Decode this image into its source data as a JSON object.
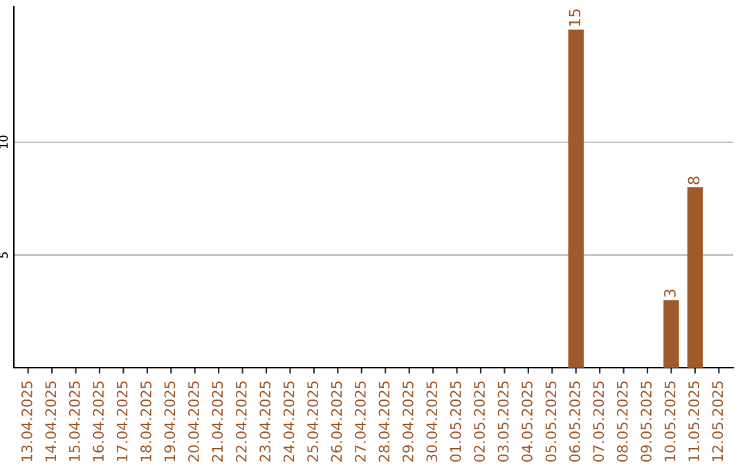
{
  "chart_data": {
    "type": "bar",
    "categories": [
      "13.04.2025",
      "14.04.2025",
      "15.04.2025",
      "16.04.2025",
      "17.04.2025",
      "18.04.2025",
      "19.04.2025",
      "20.04.2025",
      "21.04.2025",
      "22.04.2025",
      "23.04.2025",
      "24.04.2025",
      "25.04.2025",
      "26.04.2025",
      "27.04.2025",
      "28.04.2025",
      "29.04.2025",
      "30.04.2025",
      "01.05.2025",
      "02.05.2025",
      "03.05.2025",
      "04.05.2025",
      "05.05.2025",
      "06.05.2025",
      "07.05.2025",
      "08.05.2025",
      "09.05.2025",
      "10.05.2025",
      "11.05.2025",
      "12.05.2025"
    ],
    "values": [
      0,
      0,
      0,
      0,
      0,
      0,
      0,
      0,
      0,
      0,
      0,
      0,
      0,
      0,
      0,
      0,
      0,
      0,
      0,
      0,
      0,
      0,
      0,
      15,
      0,
      0,
      0,
      3,
      8,
      0
    ],
    "value_labels": [
      null,
      null,
      null,
      null,
      null,
      null,
      null,
      null,
      null,
      null,
      null,
      null,
      null,
      null,
      null,
      null,
      null,
      null,
      null,
      null,
      null,
      null,
      null,
      "15",
      null,
      null,
      null,
      "3",
      "8",
      null
    ],
    "color": "#a0592a",
    "ylim": [
      0,
      16
    ],
    "yticks": [
      5,
      10
    ],
    "grid": "y"
  }
}
